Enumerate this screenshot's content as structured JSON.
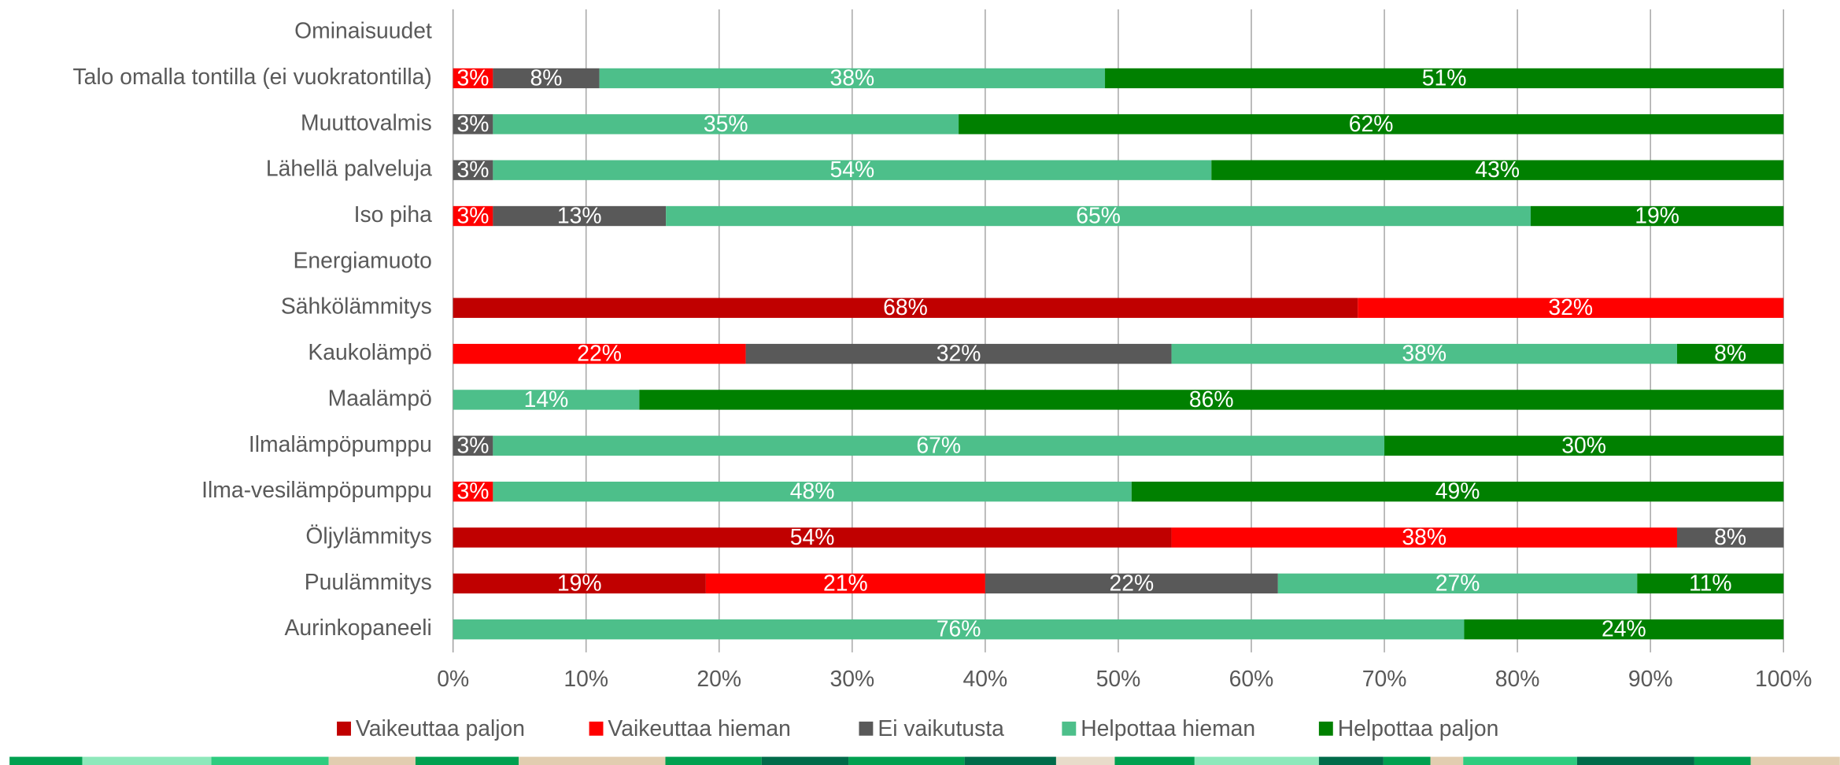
{
  "chart_data": {
    "type": "stacked_barh",
    "categories": [
      "Ominaisuudet",
      "Talo omalla tontilla (ei vuokratontilla)",
      "Muuttovalmis",
      "Lähellä palveluja",
      "Iso piha",
      "Energiamuoto",
      "Sähkölämmitys",
      "Kaukolämpö",
      "Maalämpö",
      "Ilmalämpöpumppu",
      "Ilma-vesilämpöpumppu",
      "Öljylämmitys",
      "Puulämmitys",
      "Aurinkopaneeli"
    ],
    "series": [
      {
        "name": "Vaikeuttaa paljon",
        "color": "#c00000",
        "values": [
          null,
          null,
          null,
          null,
          null,
          null,
          68,
          null,
          null,
          null,
          null,
          54,
          19,
          null
        ],
        "value_labels": [
          null,
          null,
          null,
          null,
          null,
          null,
          "68%",
          null,
          null,
          null,
          null,
          "54%",
          "19%",
          null
        ]
      },
      {
        "name": "Vaikeuttaa hieman",
        "color": "#ff0000",
        "values": [
          null,
          3,
          null,
          null,
          3,
          null,
          32,
          22,
          null,
          null,
          3,
          38,
          21,
          null
        ],
        "value_labels": [
          null,
          "3%",
          null,
          null,
          "3%",
          null,
          "32%",
          "22%",
          null,
          null,
          "3%",
          "38%",
          "21%",
          null
        ]
      },
      {
        "name": "Ei vaikutusta",
        "color": "#595959",
        "values": [
          null,
          8,
          3,
          3,
          13,
          null,
          null,
          32,
          null,
          3,
          null,
          8,
          22,
          null
        ],
        "value_labels": [
          null,
          "8%",
          "3%",
          "3%",
          "13%",
          null,
          null,
          "32%",
          null,
          "3%",
          null,
          "8%",
          "22%",
          null
        ]
      },
      {
        "name": "Helpottaa hieman",
        "color": "#4dbf8a",
        "values": [
          null,
          38,
          35,
          54,
          65,
          null,
          null,
          38,
          14,
          67,
          48,
          null,
          27,
          76
        ],
        "value_labels": [
          null,
          "38%",
          "35%",
          "54%",
          "65%",
          null,
          null,
          "38%",
          "14%",
          "67%",
          "48%",
          null,
          "27%",
          "76%"
        ]
      },
      {
        "name": "Helpottaa paljon",
        "color": "#008000",
        "values": [
          null,
          51,
          62,
          43,
          19,
          null,
          null,
          8,
          86,
          30,
          49,
          null,
          11,
          24
        ],
        "value_labels": [
          null,
          "51%",
          "62%",
          "43%",
          "19%",
          null,
          null,
          "8%",
          "86%",
          "30%",
          "49%",
          null,
          "11%",
          "24%"
        ]
      }
    ],
    "xlim": [
      0,
      100
    ],
    "xticks": [
      {
        "value": 0,
        "label": "0%"
      },
      {
        "value": 10,
        "label": "10%"
      },
      {
        "value": 20,
        "label": "20%"
      },
      {
        "value": 30,
        "label": "30%"
      },
      {
        "value": 40,
        "label": "40%"
      },
      {
        "value": 50,
        "label": "50%"
      },
      {
        "value": 60,
        "label": "60%"
      },
      {
        "value": 70,
        "label": "70%"
      },
      {
        "value": 80,
        "label": "80%"
      },
      {
        "value": 90,
        "label": "90%"
      },
      {
        "value": 100,
        "label": "100%"
      }
    ],
    "grid": true,
    "legend": "bottom"
  }
}
